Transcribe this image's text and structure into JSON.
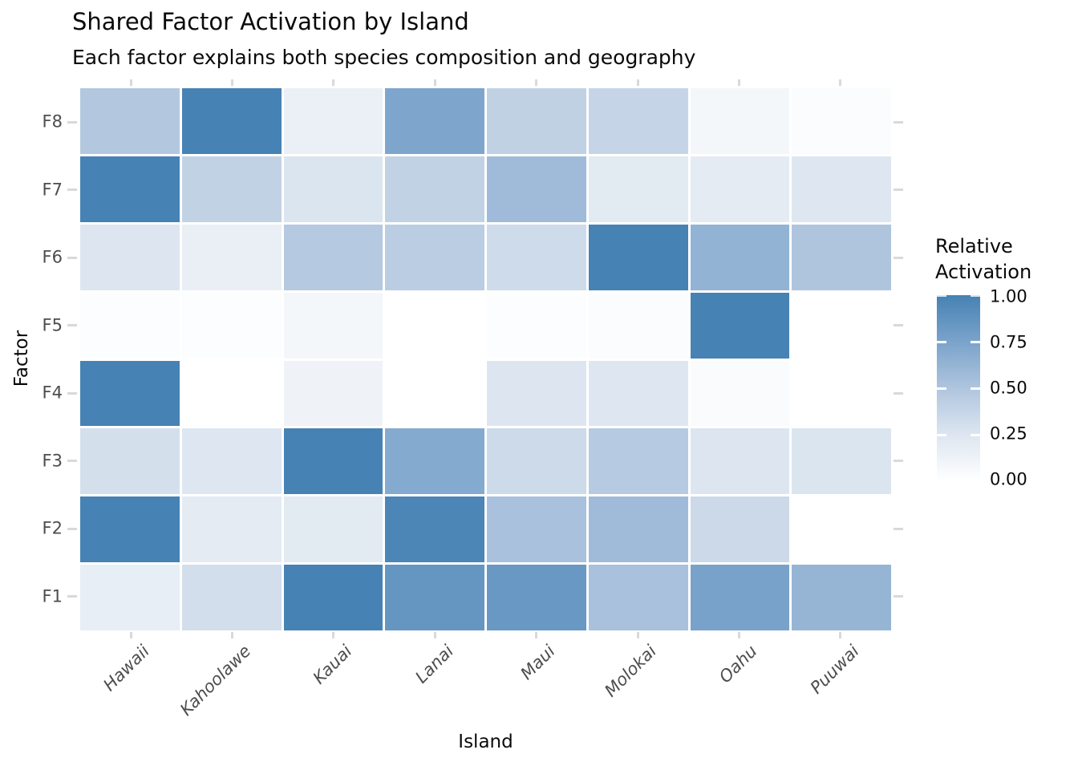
{
  "chart_data": {
    "type": "heatmap",
    "title": "Shared Factor Activation by Island",
    "subtitle": "Each factor explains both species composition and geography",
    "xlabel": "Island",
    "ylabel": "Factor",
    "x_categories": [
      "Hawaii",
      "Kahoolawe",
      "Kauai",
      "Lanai",
      "Maui",
      "Molokai",
      "Oahu",
      "Puuwai"
    ],
    "y_categories_top_to_bottom": [
      "F8",
      "F7",
      "F6",
      "F5",
      "F4",
      "F3",
      "F2",
      "F1"
    ],
    "matrix": [
      {
        "factor": "F8",
        "values": [
          0.48,
          1.0,
          0.15,
          0.73,
          0.41,
          0.38,
          0.08,
          0.03
        ]
      },
      {
        "factor": "F7",
        "values": [
          1.0,
          0.4,
          0.26,
          0.4,
          0.57,
          0.21,
          0.2,
          0.24
        ]
      },
      {
        "factor": "F6",
        "values": [
          0.25,
          0.16,
          0.47,
          0.44,
          0.33,
          1.0,
          0.63,
          0.5
        ]
      },
      {
        "factor": "F5",
        "values": [
          0.02,
          0.02,
          0.08,
          0.0,
          0.02,
          0.03,
          1.0,
          0.0
        ]
      },
      {
        "factor": "F4",
        "values": [
          1.0,
          0.0,
          0.12,
          0.0,
          0.25,
          0.24,
          0.04,
          0.0
        ]
      },
      {
        "factor": "F3",
        "values": [
          0.3,
          0.24,
          1.0,
          0.7,
          0.34,
          0.46,
          0.25,
          0.26
        ]
      },
      {
        "factor": "F2",
        "values": [
          1.0,
          0.2,
          0.21,
          0.97,
          0.53,
          0.57,
          0.35,
          0.0
        ]
      },
      {
        "factor": "F1",
        "values": [
          0.17,
          0.31,
          1.0,
          0.85,
          0.83,
          0.53,
          0.76,
          0.62
        ]
      }
    ],
    "value_range": [
      0,
      1
    ],
    "legend": {
      "title": "Relative\nActivation",
      "tick_labels": [
        "1.00",
        "0.75",
        "0.50",
        "0.25",
        "0.00"
      ]
    },
    "colormap": {
      "name": "white-to-steelblue",
      "stops": [
        [
          0,
          "#ffffff"
        ],
        [
          0.25,
          "#dde6f0"
        ],
        [
          0.5,
          "#afc5de"
        ],
        [
          0.75,
          "#7aa3cb"
        ],
        [
          1,
          "#4682b4"
        ]
      ]
    },
    "grid": false,
    "legend_position": "right"
  }
}
